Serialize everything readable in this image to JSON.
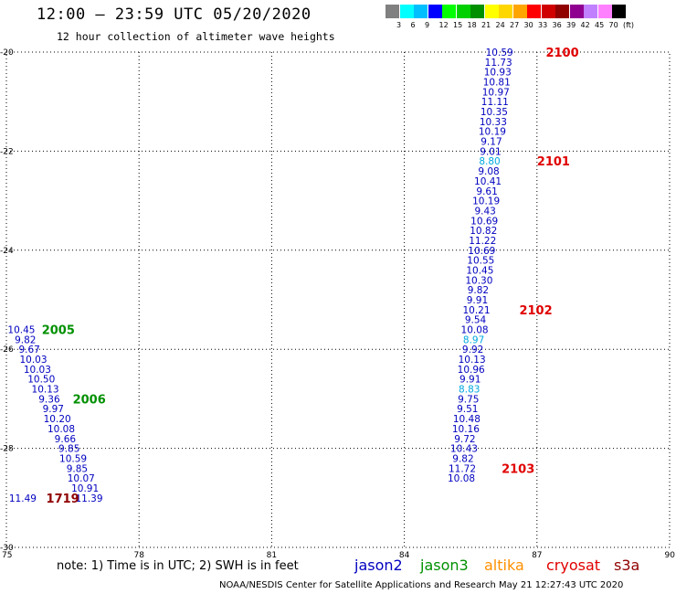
{
  "title": "12:00 — 23:59 UTC 05/20/2020",
  "subtitle": "12 hour collection of altimeter wave heights",
  "scale": {
    "colors": [
      "#808080",
      "#00ffff",
      "#00bfff",
      "#0000ff",
      "#00ff00",
      "#00d000",
      "#009000",
      "#ffff00",
      "#ffd700",
      "#ffa500",
      "#ff0000",
      "#d00000",
      "#900000",
      "#900090",
      "#c080ff",
      "#ff80ff",
      "#000000"
    ],
    "labels": [
      "3",
      "6",
      "9",
      "12",
      "15",
      "18",
      "21",
      "24",
      "27",
      "30",
      "33",
      "36",
      "39",
      "42",
      "45",
      "70",
      "(ft)"
    ]
  },
  "note": "note: 1) Time is in UTC; 2) SWH is in feet",
  "satellites": [
    {
      "name": "jason2",
      "color": "#0000c0"
    },
    {
      "name": "jason3",
      "color": "#009000"
    },
    {
      "name": "altika",
      "color": "#ff9000"
    },
    {
      "name": "cryosat",
      "color": "#e00000"
    },
    {
      "name": "s3a",
      "color": "#900000"
    }
  ],
  "credit": "NOAA/NESDIS Center for Satellite Applications and Research    May 21 12:27:43 UTC 2020",
  "chart_data": {
    "type": "scatter",
    "xlim": [
      75,
      90
    ],
    "ylim": [
      -30,
      -20
    ],
    "x_ticks": [
      "75",
      "78",
      "81",
      "84",
      "87",
      "90"
    ],
    "y_ticks": [
      "-20",
      "-22",
      "-24",
      "-26",
      "-28",
      "-30"
    ],
    "grid": true,
    "points": [
      {
        "x": 86.15,
        "y": -20.0,
        "v": "10.59",
        "c": "#0000c0"
      },
      {
        "x": 86.13,
        "y": -20.2,
        "v": "11.73",
        "c": "#0000c0"
      },
      {
        "x": 86.11,
        "y": -20.4,
        "v": "10.93",
        "c": "#0000c0"
      },
      {
        "x": 86.09,
        "y": -20.6,
        "v": "10.81",
        "c": "#0000c0"
      },
      {
        "x": 86.07,
        "y": -20.8,
        "v": "10.97",
        "c": "#0000c0"
      },
      {
        "x": 86.05,
        "y": -21.0,
        "v": "11.11",
        "c": "#0000c0"
      },
      {
        "x": 86.03,
        "y": -21.2,
        "v": "10.35",
        "c": "#0000c0"
      },
      {
        "x": 86.01,
        "y": -21.4,
        "v": "10.33",
        "c": "#0000c0"
      },
      {
        "x": 85.99,
        "y": -21.6,
        "v": "10.19",
        "c": "#0000c0"
      },
      {
        "x": 85.97,
        "y": -21.8,
        "v": "9.17",
        "c": "#0000c0"
      },
      {
        "x": 85.95,
        "y": -22.0,
        "v": "9.01",
        "c": "#0000c0"
      },
      {
        "x": 85.93,
        "y": -22.2,
        "v": "8.80",
        "c": "#00a8e0"
      },
      {
        "x": 85.91,
        "y": -22.4,
        "v": "9.08",
        "c": "#0000c0"
      },
      {
        "x": 85.89,
        "y": -22.6,
        "v": "10.41",
        "c": "#0000c0"
      },
      {
        "x": 85.87,
        "y": -22.8,
        "v": "9.61",
        "c": "#0000c0"
      },
      {
        "x": 85.85,
        "y": -23.0,
        "v": "10.19",
        "c": "#0000c0"
      },
      {
        "x": 85.83,
        "y": -23.2,
        "v": "9.43",
        "c": "#0000c0"
      },
      {
        "x": 85.81,
        "y": -23.4,
        "v": "10.69",
        "c": "#0000c0"
      },
      {
        "x": 85.79,
        "y": -23.6,
        "v": "10.82",
        "c": "#0000c0"
      },
      {
        "x": 85.77,
        "y": -23.8,
        "v": "11.22",
        "c": "#0000c0"
      },
      {
        "x": 85.75,
        "y": -24.0,
        "v": "10.69",
        "c": "#0000c0"
      },
      {
        "x": 85.73,
        "y": -24.2,
        "v": "10.55",
        "c": "#0000c0"
      },
      {
        "x": 85.71,
        "y": -24.4,
        "v": "10.45",
        "c": "#0000c0"
      },
      {
        "x": 85.69,
        "y": -24.6,
        "v": "10.30",
        "c": "#0000c0"
      },
      {
        "x": 85.67,
        "y": -24.8,
        "v": "9.82",
        "c": "#0000c0"
      },
      {
        "x": 85.65,
        "y": -25.0,
        "v": "9.91",
        "c": "#0000c0"
      },
      {
        "x": 85.63,
        "y": -25.2,
        "v": "10.21",
        "c": "#0000c0"
      },
      {
        "x": 85.61,
        "y": -25.4,
        "v": "9.54",
        "c": "#0000c0"
      },
      {
        "x": 85.59,
        "y": -25.6,
        "v": "10.08",
        "c": "#0000c0"
      },
      {
        "x": 85.57,
        "y": -25.8,
        "v": "8.97",
        "c": "#00a8e0"
      },
      {
        "x": 85.55,
        "y": -26.0,
        "v": "9.92",
        "c": "#0000c0"
      },
      {
        "x": 85.53,
        "y": -26.2,
        "v": "10.13",
        "c": "#0000c0"
      },
      {
        "x": 85.51,
        "y": -26.4,
        "v": "10.96",
        "c": "#0000c0"
      },
      {
        "x": 85.49,
        "y": -26.6,
        "v": "9.91",
        "c": "#0000c0"
      },
      {
        "x": 85.47,
        "y": -26.8,
        "v": "8.83",
        "c": "#00a8e0"
      },
      {
        "x": 85.45,
        "y": -27.0,
        "v": "9.75",
        "c": "#0000c0"
      },
      {
        "x": 85.43,
        "y": -27.2,
        "v": "9.51",
        "c": "#0000c0"
      },
      {
        "x": 85.41,
        "y": -27.4,
        "v": "10.48",
        "c": "#0000c0"
      },
      {
        "x": 85.39,
        "y": -27.6,
        "v": "10.16",
        "c": "#0000c0"
      },
      {
        "x": 85.37,
        "y": -27.8,
        "v": "9.72",
        "c": "#0000c0"
      },
      {
        "x": 85.35,
        "y": -28.0,
        "v": "10.43",
        "c": "#0000c0"
      },
      {
        "x": 85.33,
        "y": -28.2,
        "v": "9.82",
        "c": "#0000c0"
      },
      {
        "x": 85.31,
        "y": -28.4,
        "v": "11.72",
        "c": "#0000c0"
      },
      {
        "x": 85.29,
        "y": -28.6,
        "v": "10.08",
        "c": "#0000c0"
      },
      {
        "x": 75.34,
        "y": -25.6,
        "v": "10.45",
        "c": "#0000c0"
      },
      {
        "x": 75.43,
        "y": -25.8,
        "v": "9.82",
        "c": "#0000c0"
      },
      {
        "x": 75.52,
        "y": -26.0,
        "v": "9.67",
        "c": "#0000c0"
      },
      {
        "x": 75.61,
        "y": -26.2,
        "v": "10.03",
        "c": "#0000c0"
      },
      {
        "x": 75.7,
        "y": -26.4,
        "v": "10.03",
        "c": "#0000c0"
      },
      {
        "x": 75.79,
        "y": -26.6,
        "v": "10.50",
        "c": "#0000c0"
      },
      {
        "x": 75.88,
        "y": -26.8,
        "v": "10.13",
        "c": "#0000c0"
      },
      {
        "x": 75.97,
        "y": -27.0,
        "v": "9.36",
        "c": "#0000c0"
      },
      {
        "x": 76.06,
        "y": -27.2,
        "v": "9.97",
        "c": "#0000c0"
      },
      {
        "x": 76.15,
        "y": -27.4,
        "v": "10.20",
        "c": "#0000c0"
      },
      {
        "x": 76.24,
        "y": -27.6,
        "v": "10.08",
        "c": "#0000c0"
      },
      {
        "x": 76.33,
        "y": -27.8,
        "v": "9.66",
        "c": "#0000c0"
      },
      {
        "x": 76.42,
        "y": -28.0,
        "v": "9.85",
        "c": "#0000c0"
      },
      {
        "x": 76.51,
        "y": -28.2,
        "v": "10.59",
        "c": "#0000c0"
      },
      {
        "x": 76.6,
        "y": -28.4,
        "v": "9.85",
        "c": "#0000c0"
      },
      {
        "x": 76.69,
        "y": -28.6,
        "v": "10.07",
        "c": "#0000c0"
      },
      {
        "x": 76.78,
        "y": -28.8,
        "v": "10.91",
        "c": "#0000c0"
      },
      {
        "x": 76.87,
        "y": -29.0,
        "v": "11.39",
        "c": "#0000c0"
      },
      {
        "x": 75.37,
        "y": -29.0,
        "v": "11.49",
        "c": "#0000c0"
      }
    ],
    "annotations": [
      {
        "x": 87.2,
        "y": -20.0,
        "text": "2100",
        "c": "#e00000"
      },
      {
        "x": 87.0,
        "y": -22.2,
        "text": "2101",
        "c": "#e00000"
      },
      {
        "x": 86.6,
        "y": -25.2,
        "text": "2102",
        "c": "#e00000"
      },
      {
        "x": 86.2,
        "y": -28.4,
        "text": "2103",
        "c": "#e00000"
      },
      {
        "x": 75.8,
        "y": -25.6,
        "text": "2005",
        "c": "#009000"
      },
      {
        "x": 76.5,
        "y": -27.0,
        "text": "2006",
        "c": "#009000"
      },
      {
        "x": 75.9,
        "y": -29.0,
        "text": "1719",
        "c": "#900000"
      }
    ]
  }
}
